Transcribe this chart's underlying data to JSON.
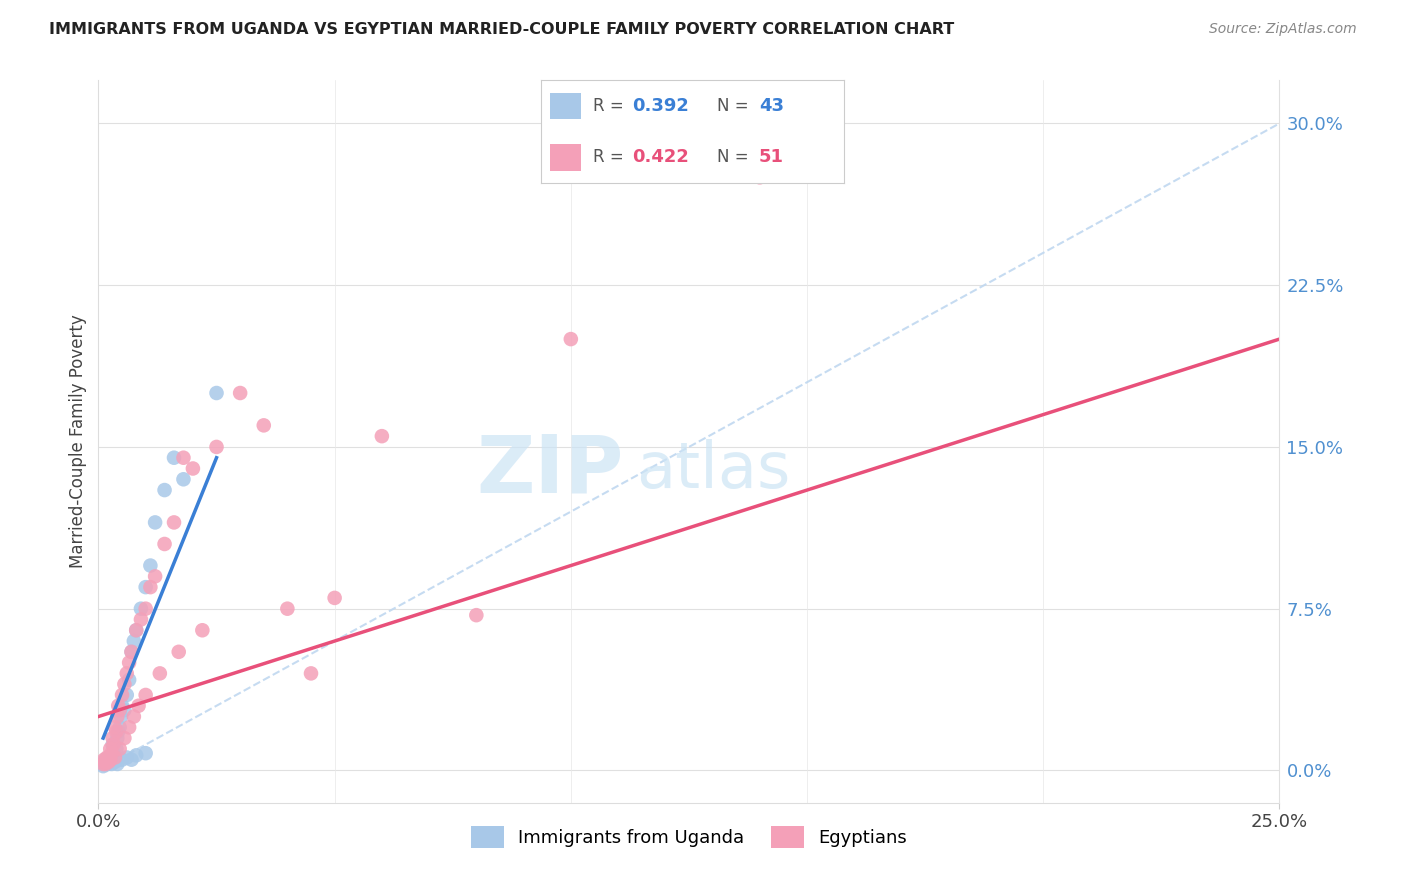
{
  "title": "IMMIGRANTS FROM UGANDA VS EGYPTIAN MARRIED-COUPLE FAMILY POVERTY CORRELATION CHART",
  "source": "Source: ZipAtlas.com",
  "ylabel": "Married-Couple Family Poverty",
  "ytick_labels": [
    "0.0%",
    "7.5%",
    "15.0%",
    "22.5%",
    "30.0%"
  ],
  "ytick_values": [
    0,
    7.5,
    15.0,
    22.5,
    30.0
  ],
  "xtick_labels": [
    "0.0%",
    "25.0%"
  ],
  "xtick_values": [
    0,
    25
  ],
  "xlim": [
    0,
    25
  ],
  "ylim": [
    -1.5,
    32
  ],
  "legend_r1": "R = 0.392",
  "legend_n1": "N = 43",
  "legend_r2": "R = 0.422",
  "legend_n2": "N = 51",
  "label1": "Immigrants from Uganda",
  "label2": "Egyptians",
  "color1": "#a8c8e8",
  "color2": "#f4a0b8",
  "trendline1_color": "#3a7fd5",
  "trendline2_color": "#e8507a",
  "diagonal_color": "#c0d8f0",
  "watermark_zip": "ZIP",
  "watermark_atlas": "atlas",
  "uganda_x": [
    0.1,
    0.12,
    0.15,
    0.18,
    0.2,
    0.22,
    0.25,
    0.28,
    0.3,
    0.32,
    0.35,
    0.38,
    0.4,
    0.42,
    0.45,
    0.48,
    0.5,
    0.55,
    0.6,
    0.65,
    0.7,
    0.75,
    0.8,
    0.9,
    1.0,
    1.1,
    1.2,
    1.4,
    1.6,
    1.8,
    0.1,
    0.15,
    0.2,
    0.25,
    0.3,
    0.35,
    0.4,
    0.5,
    0.6,
    0.7,
    0.8,
    1.0,
    2.5
  ],
  "uganda_y": [
    0.3,
    0.4,
    0.5,
    0.3,
    0.5,
    0.6,
    0.4,
    0.3,
    1.2,
    0.8,
    0.6,
    1.0,
    1.5,
    1.8,
    2.0,
    2.5,
    3.0,
    2.8,
    3.5,
    4.2,
    5.5,
    6.0,
    6.5,
    7.5,
    8.5,
    9.5,
    11.5,
    13.0,
    14.5,
    13.5,
    0.2,
    0.3,
    0.3,
    0.4,
    0.5,
    0.4,
    0.3,
    0.5,
    0.6,
    0.5,
    0.7,
    0.8,
    17.5
  ],
  "egypt_x": [
    0.1,
    0.12,
    0.15,
    0.18,
    0.2,
    0.22,
    0.25,
    0.28,
    0.3,
    0.32,
    0.35,
    0.38,
    0.4,
    0.42,
    0.45,
    0.5,
    0.55,
    0.6,
    0.65,
    0.7,
    0.8,
    0.9,
    1.0,
    1.1,
    1.2,
    1.4,
    1.6,
    1.8,
    2.0,
    2.5,
    3.0,
    3.5,
    4.0,
    5.0,
    6.0,
    8.0,
    10.0,
    0.15,
    0.25,
    0.35,
    0.45,
    0.55,
    0.65,
    0.75,
    0.85,
    1.0,
    1.3,
    1.7,
    2.2,
    4.5,
    14.0
  ],
  "egypt_y": [
    0.3,
    0.5,
    0.4,
    0.6,
    0.5,
    0.4,
    1.0,
    0.8,
    1.5,
    1.2,
    2.0,
    1.8,
    2.5,
    3.0,
    2.8,
    3.5,
    4.0,
    4.5,
    5.0,
    5.5,
    6.5,
    7.0,
    7.5,
    8.5,
    9.0,
    10.5,
    11.5,
    14.5,
    14.0,
    15.0,
    17.5,
    16.0,
    7.5,
    8.0,
    15.5,
    7.2,
    20.0,
    0.3,
    0.5,
    0.6,
    1.0,
    1.5,
    2.0,
    2.5,
    3.0,
    3.5,
    4.5,
    5.5,
    6.5,
    4.5,
    27.5
  ],
  "uganda_trend_x": [
    0.1,
    2.5
  ],
  "uganda_trend_y": [
    1.5,
    14.5
  ],
  "egypt_trend_x": [
    0.0,
    25.0
  ],
  "egypt_trend_y": [
    2.5,
    20.0
  ]
}
